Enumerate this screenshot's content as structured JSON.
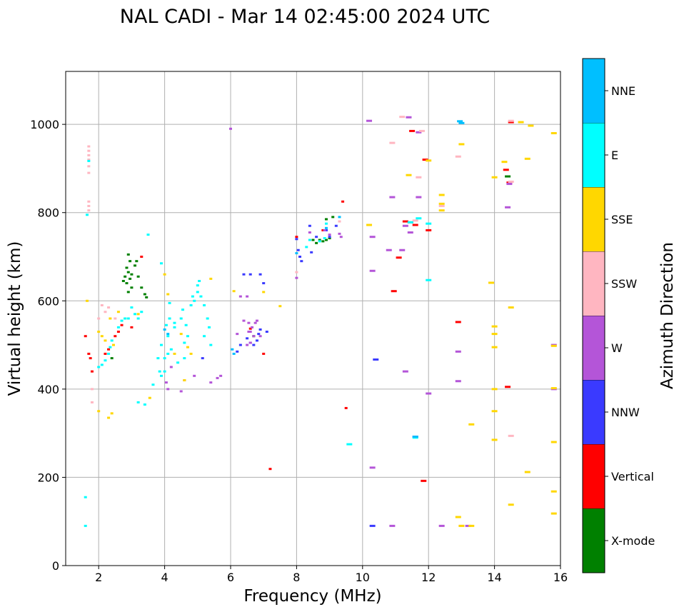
{
  "chart_data": {
    "type": "scatter",
    "title": "NAL CADI - Mar 14 02:45:00 2024 UTC",
    "xlabel": "Frequency (MHz)",
    "ylabel": "Virtual height (km)",
    "xlim": [
      1,
      16
    ],
    "ylim": [
      0,
      1120
    ],
    "xticks": [
      2,
      4,
      6,
      8,
      10,
      12,
      14,
      16
    ],
    "yticks": [
      0,
      200,
      400,
      600,
      800,
      1000
    ],
    "grid": true,
    "colorbar": {
      "label": "Azimuth Direction",
      "categories": [
        "X-mode",
        "Vertical",
        "NNW",
        "W",
        "SSW",
        "SSE",
        "E",
        "NNE"
      ],
      "colors": [
        "#008000",
        "#ff0000",
        "#3a3aff",
        "#b455d8",
        "#ffb6c1",
        "#ffd700",
        "#00ffff",
        "#00bfff"
      ]
    },
    "series": [
      {
        "name": "X-mode",
        "points": [
          [
            2.9,
            705
          ],
          [
            2.95,
            690
          ],
          [
            2.85,
            675
          ],
          [
            2.9,
            665
          ],
          [
            2.8,
            655
          ],
          [
            2.95,
            650
          ],
          [
            2.85,
            640
          ],
          [
            3.0,
            630
          ],
          [
            2.9,
            620
          ],
          [
            3.1,
            680
          ],
          [
            3.2,
            655
          ],
          [
            3.3,
            630
          ],
          [
            3.4,
            615
          ],
          [
            3.45,
            608
          ],
          [
            3.0,
            660
          ],
          [
            2.75,
            645
          ],
          [
            8.5,
            738
          ],
          [
            8.7,
            738
          ],
          [
            8.9,
            738
          ],
          [
            9.0,
            742
          ],
          [
            8.6,
            731
          ],
          [
            8.8,
            735
          ],
          [
            9.1,
            790
          ],
          [
            8.9,
            785
          ],
          [
            14.4,
            882
          ],
          [
            6.7,
            520
          ],
          [
            2.4,
            470
          ],
          [
            3.15,
            690
          ]
        ]
      },
      {
        "name": "Vertical",
        "points": [
          [
            1.7,
            480
          ],
          [
            1.75,
            470
          ],
          [
            1.8,
            440
          ],
          [
            1.6,
            520
          ],
          [
            2.2,
            480
          ],
          [
            2.3,
            490
          ],
          [
            2.5,
            520
          ],
          [
            2.6,
            530
          ],
          [
            2.7,
            545
          ],
          [
            3.0,
            540
          ],
          [
            3.3,
            700
          ],
          [
            11.5,
            985
          ],
          [
            11.9,
            920
          ],
          [
            12.0,
            760
          ],
          [
            11.3,
            780
          ],
          [
            11.45,
            778
          ],
          [
            11.6,
            772
          ],
          [
            11.1,
            698
          ],
          [
            10.95,
            622
          ],
          [
            12.9,
            552
          ],
          [
            9.5,
            357
          ],
          [
            7.2,
            219
          ],
          [
            11.85,
            192
          ],
          [
            14.4,
            405
          ],
          [
            14.35,
            897
          ],
          [
            14.5,
            1005
          ],
          [
            14.45,
            868
          ],
          [
            9.4,
            825
          ],
          [
            8.0,
            745
          ],
          [
            8.8,
            760
          ],
          [
            6.6,
            537
          ],
          [
            7.0,
            480
          ]
        ]
      },
      {
        "name": "NNW",
        "points": [
          [
            6.4,
            660
          ],
          [
            6.6,
            660
          ],
          [
            6.9,
            660
          ],
          [
            7.0,
            640
          ],
          [
            6.5,
            515
          ],
          [
            6.6,
            505
          ],
          [
            6.7,
            500
          ],
          [
            6.8,
            510
          ],
          [
            6.85,
            525
          ],
          [
            6.9,
            535
          ],
          [
            7.1,
            530
          ],
          [
            6.2,
            485
          ],
          [
            6.3,
            500
          ],
          [
            8.0,
            740
          ],
          [
            8.05,
            715
          ],
          [
            8.1,
            700
          ],
          [
            8.15,
            690
          ],
          [
            8.4,
            770
          ],
          [
            8.45,
            710
          ],
          [
            8.6,
            745
          ],
          [
            8.9,
            760
          ],
          [
            9.0,
            745
          ],
          [
            9.2,
            770
          ],
          [
            10.3,
            90
          ],
          [
            11.6,
            292
          ],
          [
            10.4,
            467
          ],
          [
            5.15,
            470
          ]
        ]
      },
      {
        "name": "W",
        "points": [
          [
            6.5,
            500
          ],
          [
            6.6,
            505
          ],
          [
            6.7,
            520
          ],
          [
            6.55,
            530
          ],
          [
            6.65,
            540
          ],
          [
            6.75,
            550
          ],
          [
            6.55,
            550
          ],
          [
            6.6,
            530
          ],
          [
            6.4,
            555
          ],
          [
            6.8,
            555
          ],
          [
            6.9,
            520
          ],
          [
            6.2,
            525
          ],
          [
            6.3,
            610
          ],
          [
            6.5,
            610
          ],
          [
            6.0,
            990
          ],
          [
            5.4,
            415
          ],
          [
            5.6,
            425
          ],
          [
            5.7,
            430
          ],
          [
            4.6,
            420
          ],
          [
            4.9,
            430
          ],
          [
            4.5,
            395
          ],
          [
            4.1,
            400
          ],
          [
            4.05,
            415
          ],
          [
            4.2,
            450
          ],
          [
            10.3,
            745
          ],
          [
            10.8,
            715
          ],
          [
            10.9,
            835
          ],
          [
            11.3,
            440
          ],
          [
            11.2,
            715
          ],
          [
            11.3,
            770
          ],
          [
            11.45,
            755
          ],
          [
            11.7,
            835
          ],
          [
            12.0,
            390
          ],
          [
            12.9,
            485
          ],
          [
            12.9,
            418
          ],
          [
            13.2,
            90
          ],
          [
            10.3,
            668
          ],
          [
            10.9,
            90
          ],
          [
            12.4,
            90
          ],
          [
            14.4,
            812
          ],
          [
            8.0,
            652
          ],
          [
            8.85,
            760
          ],
          [
            9.0,
            750
          ],
          [
            9.3,
            752
          ],
          [
            9.35,
            745
          ],
          [
            8.4,
            755
          ],
          [
            10.2,
            1008
          ],
          [
            11.4,
            1016
          ],
          [
            11.7,
            982
          ],
          [
            15.8,
            500
          ],
          [
            15.8,
            400
          ],
          [
            14.45,
            865
          ],
          [
            10.3,
            222
          ]
        ]
      },
      {
        "name": "SSW",
        "points": [
          [
            1.7,
            950
          ],
          [
            1.7,
            940
          ],
          [
            1.7,
            930
          ],
          [
            1.7,
            920
          ],
          [
            1.7,
            905
          ],
          [
            1.7,
            890
          ],
          [
            1.7,
            825
          ],
          [
            1.7,
            815
          ],
          [
            1.7,
            805
          ],
          [
            1.8,
            400
          ],
          [
            1.8,
            370
          ],
          [
            2.1,
            590
          ],
          [
            2.2,
            575
          ],
          [
            2.3,
            585
          ],
          [
            2.5,
            560
          ],
          [
            2.0,
            560
          ],
          [
            10.9,
            958
          ],
          [
            11.2,
            1017
          ],
          [
            11.7,
            880
          ],
          [
            11.8,
            985
          ],
          [
            12.9,
            927
          ],
          [
            12.4,
            815
          ],
          [
            13.0,
            90
          ],
          [
            14.5,
            294
          ],
          [
            14.5,
            1008
          ],
          [
            14.5,
            870
          ],
          [
            8.0,
            665
          ],
          [
            9.3,
            780
          ],
          [
            11.6,
            782
          ]
        ]
      },
      {
        "name": "SSE",
        "points": [
          [
            1.65,
            600
          ],
          [
            2.0,
            530
          ],
          [
            2.1,
            520
          ],
          [
            2.2,
            510
          ],
          [
            2.3,
            335
          ],
          [
            2.4,
            345
          ],
          [
            2.0,
            350
          ],
          [
            2.45,
            500
          ],
          [
            2.35,
            560
          ],
          [
            2.6,
            575
          ],
          [
            2.8,
            560
          ],
          [
            3.2,
            570
          ],
          [
            3.55,
            380
          ],
          [
            4.0,
            660
          ],
          [
            4.1,
            615
          ],
          [
            4.5,
            525
          ],
          [
            4.7,
            495
          ],
          [
            4.8,
            480
          ],
          [
            4.6,
            420
          ],
          [
            4.3,
            480
          ],
          [
            5.4,
            650
          ],
          [
            6.1,
            622
          ],
          [
            7.0,
            620
          ],
          [
            7.5,
            588
          ],
          [
            10.2,
            772
          ],
          [
            11.4,
            885
          ],
          [
            12.0,
            918
          ],
          [
            12.4,
            840
          ],
          [
            12.4,
            820
          ],
          [
            12.4,
            805
          ],
          [
            13.0,
            955
          ],
          [
            13.3,
            320
          ],
          [
            12.9,
            110
          ],
          [
            13.0,
            90
          ],
          [
            13.3,
            90
          ],
          [
            13.9,
            641
          ],
          [
            14.0,
            542
          ],
          [
            14.0,
            525
          ],
          [
            14.0,
            495
          ],
          [
            14.0,
            400
          ],
          [
            14.0,
            350
          ],
          [
            14.0,
            285
          ],
          [
            14.5,
            585
          ],
          [
            14.5,
            138
          ],
          [
            14.3,
            915
          ],
          [
            14.0,
            880
          ],
          [
            15.0,
            922
          ],
          [
            15.1,
            997
          ],
          [
            15.0,
            212
          ],
          [
            15.8,
            980
          ],
          [
            15.8,
            498
          ],
          [
            15.8,
            280
          ],
          [
            15.8,
            168
          ],
          [
            15.8,
            118
          ],
          [
            15.8,
            402
          ],
          [
            14.8,
            1005
          ]
        ]
      },
      {
        "name": "E",
        "points": [
          [
            1.7,
            917
          ],
          [
            1.65,
            795
          ],
          [
            1.6,
            155
          ],
          [
            1.6,
            90
          ],
          [
            2.0,
            450
          ],
          [
            2.1,
            455
          ],
          [
            2.2,
            465
          ],
          [
            2.3,
            480
          ],
          [
            2.35,
            495
          ],
          [
            2.4,
            510
          ],
          [
            2.6,
            540
          ],
          [
            2.7,
            555
          ],
          [
            2.8,
            560
          ],
          [
            2.9,
            560
          ],
          [
            3.0,
            585
          ],
          [
            3.1,
            570
          ],
          [
            3.2,
            560
          ],
          [
            3.3,
            575
          ],
          [
            3.5,
            750
          ],
          [
            3.9,
            500
          ],
          [
            3.8,
            470
          ],
          [
            3.85,
            440
          ],
          [
            3.9,
            430
          ],
          [
            4.0,
            440
          ],
          [
            4.0,
            470
          ],
          [
            4.1,
            480
          ],
          [
            4.2,
            490
          ],
          [
            4.1,
            520
          ],
          [
            4.05,
            545
          ],
          [
            4.15,
            560
          ],
          [
            4.3,
            550
          ],
          [
            4.5,
            560
          ],
          [
            4.55,
            580
          ],
          [
            4.65,
            545
          ],
          [
            4.7,
            520
          ],
          [
            4.8,
            590
          ],
          [
            4.85,
            610
          ],
          [
            4.9,
            600
          ],
          [
            5.0,
            620
          ],
          [
            5.0,
            635
          ],
          [
            5.05,
            645
          ],
          [
            5.1,
            610
          ],
          [
            5.2,
            590
          ],
          [
            5.3,
            560
          ],
          [
            5.2,
            520
          ],
          [
            5.35,
            540
          ],
          [
            5.4,
            500
          ],
          [
            3.4,
            365
          ],
          [
            3.2,
            370
          ],
          [
            8.3,
            722
          ],
          [
            8.4,
            738
          ],
          [
            8.9,
            775
          ],
          [
            8.7,
            735
          ],
          [
            8.85,
            742
          ],
          [
            9.6,
            275
          ],
          [
            11.6,
            290
          ],
          [
            12.0,
            775
          ],
          [
            11.7,
            787
          ],
          [
            11.45,
            778
          ],
          [
            12.0,
            647
          ],
          [
            3.9,
            685
          ],
          [
            4.3,
            540
          ],
          [
            4.4,
            460
          ],
          [
            4.6,
            470
          ],
          [
            3.65,
            410
          ],
          [
            4.15,
            595
          ],
          [
            4.6,
            505
          ]
        ]
      },
      {
        "name": "NNE",
        "points": [
          [
            12.95,
            1007
          ],
          [
            13.0,
            1003
          ],
          [
            11.6,
            292
          ],
          [
            6.05,
            490
          ],
          [
            6.1,
            480
          ],
          [
            4.0,
            535
          ],
          [
            4.1,
            525
          ],
          [
            8.0,
            708
          ],
          [
            8.9,
            765
          ],
          [
            9.3,
            790
          ]
        ]
      }
    ]
  }
}
